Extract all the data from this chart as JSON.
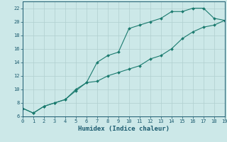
{
  "line1_x": [
    0,
    1,
    2,
    3,
    4,
    5,
    6,
    7,
    8,
    9,
    10,
    11,
    12,
    13,
    14,
    15,
    16,
    17,
    18,
    19
  ],
  "line1_y": [
    7.2,
    6.5,
    7.5,
    8.0,
    8.5,
    10.0,
    11.0,
    14.0,
    15.0,
    15.5,
    19.0,
    19.5,
    20.0,
    20.5,
    21.5,
    21.5,
    22.0,
    22.0,
    20.5,
    20.2
  ],
  "line2_x": [
    0,
    1,
    2,
    3,
    4,
    5,
    6,
    7,
    8,
    9,
    10,
    11,
    12,
    13,
    14,
    15,
    16,
    17,
    18,
    19
  ],
  "line2_y": [
    7.2,
    6.5,
    7.5,
    8.0,
    8.5,
    9.8,
    11.0,
    11.2,
    12.0,
    12.5,
    13.0,
    13.5,
    14.5,
    15.0,
    16.0,
    17.5,
    18.5,
    19.2,
    19.5,
    20.2
  ],
  "line_color": "#1a7a6e",
  "marker": "D",
  "marker_size": 2.0,
  "xlabel": "Humidex (Indice chaleur)",
  "xlim": [
    0,
    19
  ],
  "ylim": [
    6,
    23
  ],
  "xticks": [
    0,
    1,
    2,
    3,
    4,
    5,
    6,
    7,
    8,
    9,
    10,
    11,
    12,
    13,
    14,
    15,
    16,
    17,
    18,
    19
  ],
  "yticks": [
    6,
    8,
    10,
    12,
    14,
    16,
    18,
    20,
    22
  ],
  "bg_color": "#cce8e8",
  "plot_bg_color": "#cce8e8",
  "grid_color": "#b0cfcf",
  "font_color": "#1a5a6e",
  "xlabel_fontsize": 6.5,
  "tick_fontsize": 5.0,
  "linewidth": 0.8
}
